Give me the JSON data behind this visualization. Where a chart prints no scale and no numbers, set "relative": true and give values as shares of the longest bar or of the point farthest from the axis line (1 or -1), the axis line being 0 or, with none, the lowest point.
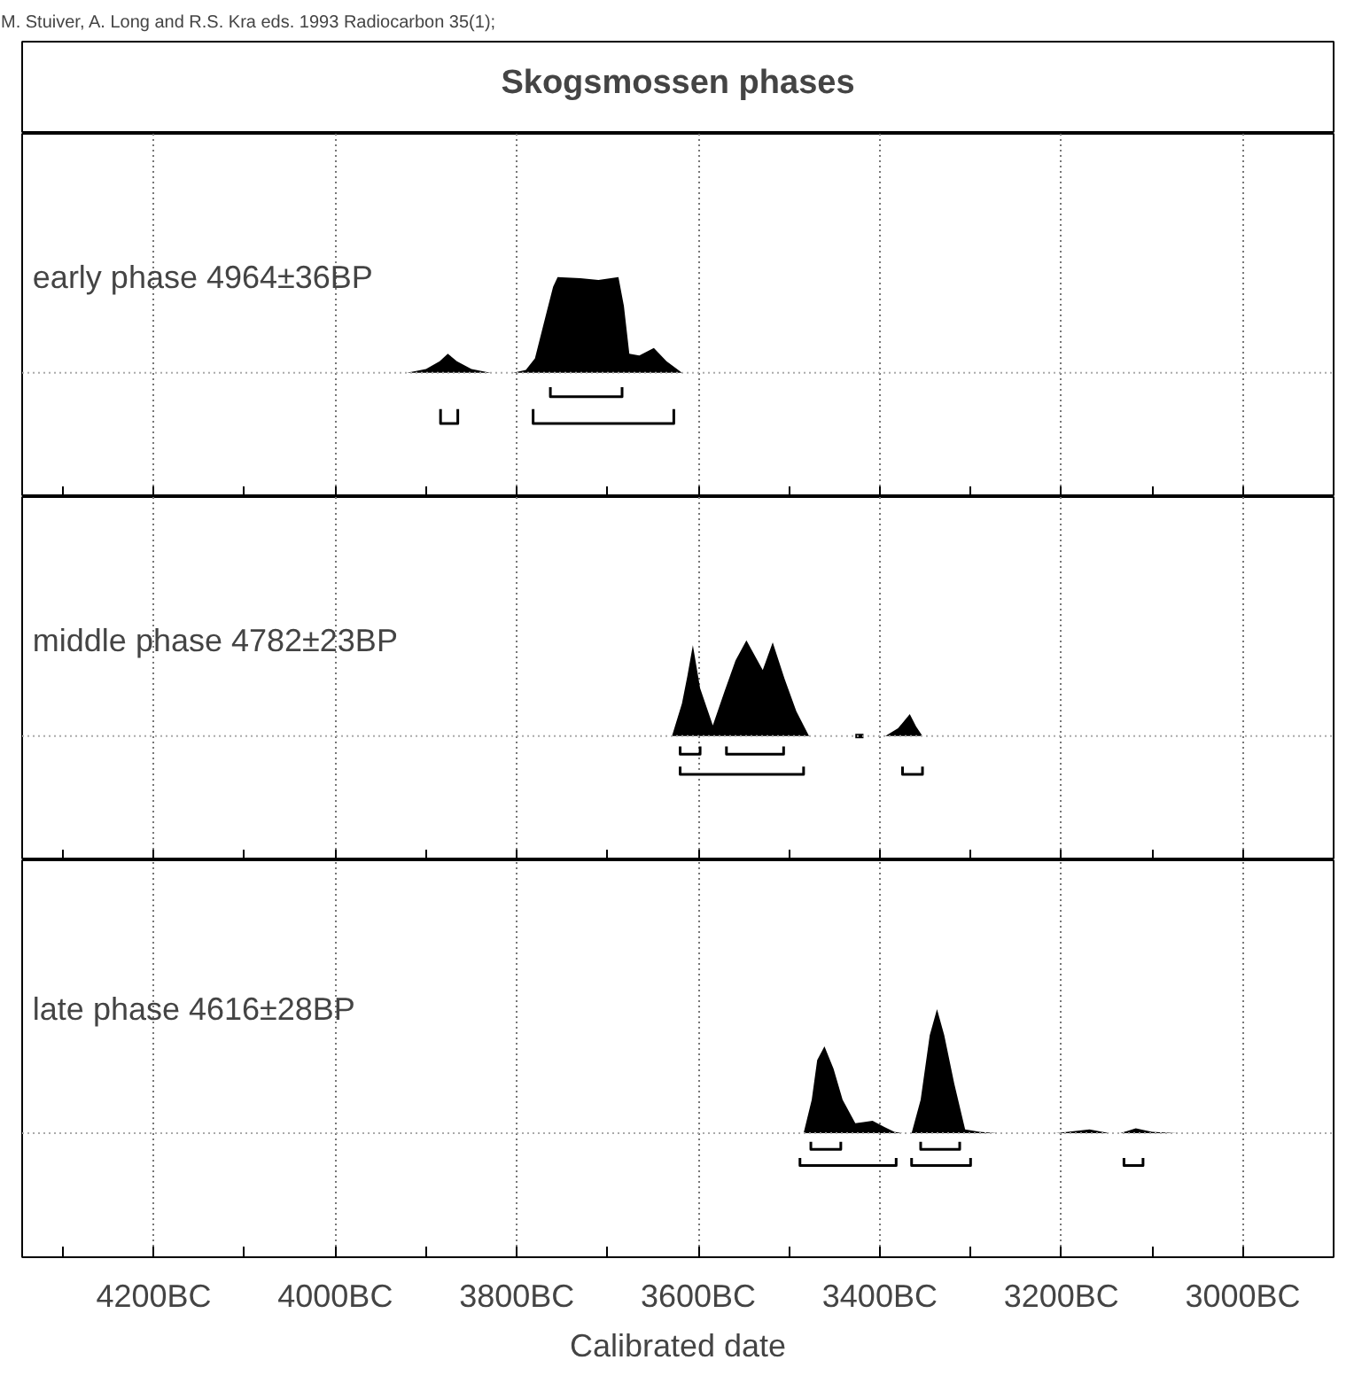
{
  "chart_data": [
    {
      "type": "area",
      "title": "Skogsmossen phases",
      "annotations": [
        "M. Stuiver, A. Long and R.S. Kra eds. 1993 Radiocarbon 35(1);"
      ],
      "subtitle": "early phase  4964±36BP",
      "relative": true,
      "xlim": [
        4345,
        2900
      ],
      "xticks": [
        {
          "value": 4200,
          "label": null
        },
        {
          "value": 4000,
          "label": null
        },
        {
          "value": 3800,
          "label": null
        },
        {
          "value": 3600,
          "label": null
        },
        {
          "value": 3400,
          "label": null
        },
        {
          "value": 3200,
          "label": null
        },
        {
          "value": 3000,
          "label": null
        }
      ],
      "tick_labels": false,
      "grid": "x",
      "ref_lines": [
        {
          "axis": "y",
          "value": 0,
          "color": "#aaaaaa",
          "line_style": "dotted"
        }
      ],
      "series": [
        {
          "color": "#000000",
          "x": [
            3921,
            3900,
            3885,
            3876,
            3866,
            3850,
            3829
          ],
          "values": [
            0,
            0.04,
            0.12,
            0.2,
            0.12,
            0.04,
            0
          ]
        },
        {
          "color": "#000000",
          "x": [
            3804,
            3790,
            3780,
            3767,
            3760,
            3755,
            3730,
            3710,
            3688,
            3682,
            3676,
            3665,
            3649,
            3635,
            3618
          ],
          "values": [
            0,
            0.03,
            0.15,
            0.64,
            0.9,
            1,
            0.99,
            0.97,
            1,
            0.7,
            0.2,
            0.18,
            0.26,
            0.12,
            0
          ]
        },
        {
          "type": "line",
          "color": "#000000",
          "x": [
            3763,
            3763,
            3684,
            3684
          ],
          "values": [
            -0.15,
            -0.25,
            -0.25,
            -0.15
          ]
        },
        {
          "type": "line",
          "color": "#000000",
          "x": [
            3884,
            3884,
            3865,
            3865,
            3850,
            3782,
            3782,
            3627,
            3627
          ],
          "values": [
            -0.38,
            -0.53,
            -0.53,
            -0.38,
            null,
            -0.38,
            -0.53,
            -0.53,
            -0.38
          ]
        }
      ]
    },
    {
      "type": "area",
      "subtitle": "middle phase  4782±23BP",
      "relative": true,
      "xlim": [
        4345,
        2900
      ],
      "xticks": [
        {
          "value": 4200,
          "label": null
        },
        {
          "value": 4000,
          "label": null
        },
        {
          "value": 3800,
          "label": null
        },
        {
          "value": 3600,
          "label": null
        },
        {
          "value": 3400,
          "label": null
        },
        {
          "value": 3200,
          "label": null
        },
        {
          "value": 3000,
          "label": null
        }
      ],
      "tick_labels": false,
      "grid": "x",
      "ref_lines": [
        {
          "axis": "y",
          "value": 0,
          "color": "#aaaaaa",
          "line_style": "dotted"
        }
      ],
      "series": [
        {
          "color": "#000000",
          "x": [
            3629,
            3618,
            3612,
            3606,
            3598,
            3584,
            3571,
            3559,
            3547,
            3529,
            3518,
            3505,
            3492,
            3478
          ],
          "values": [
            0,
            0.34,
            0.63,
            0.95,
            0.5,
            0.11,
            0.47,
            0.79,
            1,
            0.69,
            0.98,
            0.6,
            0.26,
            0
          ]
        },
        {
          "type": "line",
          "color": "#000000",
          "x": [
            3427,
            3418
          ],
          "values": [
            0,
            0
          ]
        },
        {
          "color": "#000000",
          "x": [
            3394,
            3380,
            3367,
            3360,
            3353
          ],
          "values": [
            0,
            0.08,
            0.23,
            0.1,
            0
          ]
        },
        {
          "type": "line",
          "color": "#000000",
          "x": [
            3620,
            3620,
            3598,
            3598,
            3580,
            3569,
            3569,
            3506,
            3506
          ],
          "values": [
            -0.11,
            -0.19,
            -0.19,
            -0.11,
            null,
            -0.11,
            -0.19,
            -0.19,
            -0.11
          ]
        },
        {
          "type": "line",
          "color": "#000000",
          "x": [
            3620,
            3620,
            3484,
            3484,
            3430,
            3375,
            3375,
            3353,
            3353
          ],
          "values": [
            -0.32,
            -0.4,
            -0.4,
            -0.32,
            null,
            -0.32,
            -0.4,
            -0.4,
            -0.32
          ]
        }
      ]
    },
    {
      "type": "area",
      "subtitle": "late phase  4616±28BP",
      "xlabel": "Calibrated date",
      "relative": true,
      "xlim": [
        4345,
        2900
      ],
      "xticks": [
        {
          "value": 4200,
          "label": "4200BC"
        },
        {
          "value": 4000,
          "label": "4000BC"
        },
        {
          "value": 3800,
          "label": "3800BC"
        },
        {
          "value": 3600,
          "label": "3600BC"
        },
        {
          "value": 3400,
          "label": "3400BC"
        },
        {
          "value": 3200,
          "label": "3200BC"
        },
        {
          "value": 3000,
          "label": "3000BC"
        }
      ],
      "tick_labels": "x",
      "grid": "x",
      "ref_lines": [
        {
          "axis": "y",
          "value": 0,
          "color": "#aaaaaa",
          "line_style": "dotted"
        }
      ],
      "series": [
        {
          "color": "#000000",
          "x": [
            3484,
            3475,
            3469,
            3461,
            3451,
            3441,
            3427,
            3418,
            3408,
            3395,
            3384,
            3375
          ],
          "values": [
            0,
            0.27,
            0.59,
            0.7,
            0.52,
            0.27,
            0.08,
            0.09,
            0.1,
            0.05,
            0.01,
            0
          ]
        },
        {
          "color": "#000000",
          "x": [
            3365,
            3355,
            3345,
            3337,
            3329,
            3318,
            3306,
            3290,
            3271
          ],
          "values": [
            0,
            0.27,
            0.79,
            1,
            0.79,
            0.4,
            0.03,
            0.01,
            0
          ]
        },
        {
          "color": "#000000",
          "x": [
            3206,
            3169,
            3147
          ],
          "values": [
            0,
            0.03,
            0
          ]
        },
        {
          "color": "#000000",
          "x": [
            3135,
            3118,
            3100,
            3073
          ],
          "values": [
            0,
            0.04,
            0.01,
            0
          ]
        },
        {
          "type": "line",
          "color": "#000000",
          "x": [
            3476,
            3476,
            3443,
            3443,
            3400,
            3355,
            3355,
            3312,
            3312
          ],
          "values": [
            -0.07,
            -0.13,
            -0.13,
            -0.07,
            null,
            -0.07,
            -0.13,
            -0.13,
            -0.07
          ]
        },
        {
          "type": "line",
          "color": "#000000",
          "x": [
            3488,
            3488,
            3382,
            3382,
            3375,
            3365,
            3365,
            3300,
            3300,
            3200,
            3131,
            3131,
            3110,
            3110
          ],
          "values": [
            -0.2,
            -0.26,
            -0.26,
            -0.2,
            null,
            -0.2,
            -0.26,
            -0.26,
            -0.2,
            null,
            -0.2,
            -0.26,
            -0.26,
            -0.2
          ]
        }
      ]
    }
  ]
}
